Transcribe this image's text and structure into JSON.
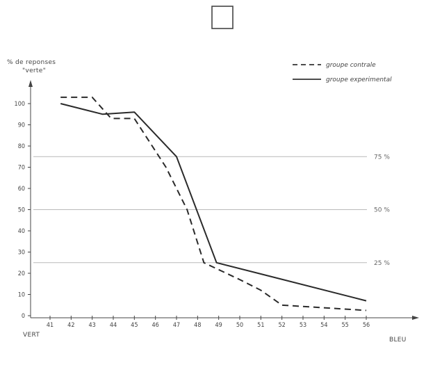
{
  "chart_data": {
    "type": "line",
    "ylabel_line1": "% de reponses",
    "ylabel_line2": "\"verte\"",
    "xlabel_left": "VERT",
    "xlabel_right": "BLEU",
    "x_ticks": [
      "41",
      "42",
      "43",
      "44",
      "45",
      "46",
      "47",
      "48",
      "49",
      "50",
      "51",
      "52",
      "53",
      "54",
      "55",
      "56"
    ],
    "y_ticks": [
      0,
      10,
      20,
      30,
      40,
      50,
      60,
      70,
      80,
      90,
      100
    ],
    "ylim": [
      0,
      105
    ],
    "xlim": [
      41,
      56
    ],
    "reference_lines": [
      {
        "value": 75,
        "label": "75 %"
      },
      {
        "value": 50,
        "label": "50 %"
      },
      {
        "value": 25,
        "label": "25 %"
      }
    ],
    "series": [
      {
        "name": "groupe contrale",
        "style": "dashed",
        "points": [
          [
            41.5,
            103
          ],
          [
            43,
            103
          ],
          [
            43.9,
            93
          ],
          [
            45,
            93
          ],
          [
            46.5,
            70
          ],
          [
            47.5,
            50
          ],
          [
            48.3,
            25
          ],
          [
            50,
            17
          ],
          [
            51,
            12
          ],
          [
            52,
            5
          ],
          [
            56,
            2.5
          ]
        ]
      },
      {
        "name": "groupe experimental",
        "style": "solid",
        "points": [
          [
            41.5,
            100
          ],
          [
            43.5,
            95
          ],
          [
            45,
            96
          ],
          [
            47,
            75
          ],
          [
            48.9,
            25
          ],
          [
            56,
            7
          ]
        ]
      }
    ],
    "grid": false,
    "legend_position": "top-right"
  },
  "symbol": "square-outline"
}
